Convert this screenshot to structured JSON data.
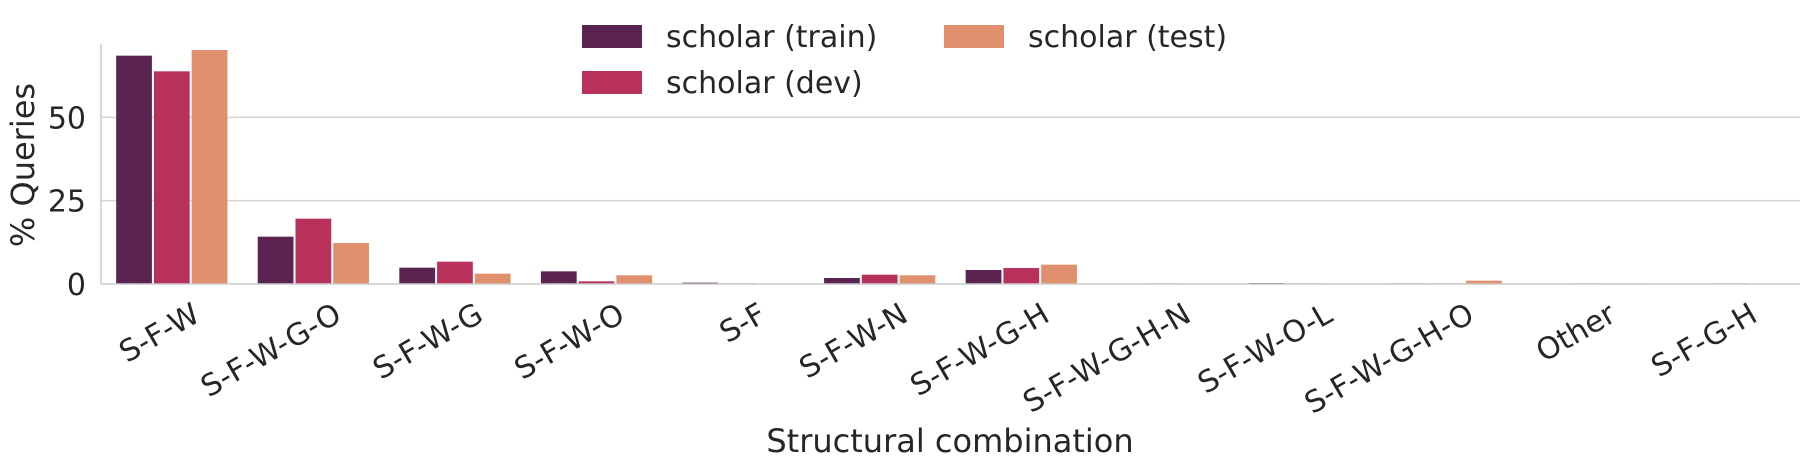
{
  "chart_data": {
    "type": "bar",
    "title": "",
    "xlabel": "Structural combination",
    "ylabel": "% Queries",
    "ylim": [
      0,
      72
    ],
    "yticks": [
      0,
      25,
      50
    ],
    "grid": "horizontal",
    "legend_position": "top-center",
    "categories": [
      "S-F-W",
      "S-F-W-G-O",
      "S-F-W-G",
      "S-F-W-O",
      "S-F",
      "S-F-W-N",
      "S-F-W-G-H",
      "S-F-W-G-H-N",
      "S-F-W-O-L",
      "S-F-W-G-H-O",
      "Other",
      "S-F-G-H"
    ],
    "series": [
      {
        "name": "scholar (train)",
        "color": "#5b2450",
        "values": [
          68.5,
          14.2,
          4.9,
          3.8,
          0.4,
          1.8,
          4.2,
          0.1,
          0.3,
          0.2,
          0.1,
          0.1
        ]
      },
      {
        "name": "scholar (dev)",
        "color": "#b8315a",
        "values": [
          63.8,
          19.6,
          6.7,
          0.8,
          0.2,
          2.8,
          4.8,
          0.2,
          0.2,
          0.2,
          0.2,
          0.2
        ]
      },
      {
        "name": "scholar (test)",
        "color": "#e0906d",
        "values": [
          70.2,
          12.3,
          3.1,
          2.6,
          0.1,
          2.6,
          5.8,
          0.1,
          0.1,
          1.0,
          0.2,
          0.1
        ]
      }
    ]
  }
}
